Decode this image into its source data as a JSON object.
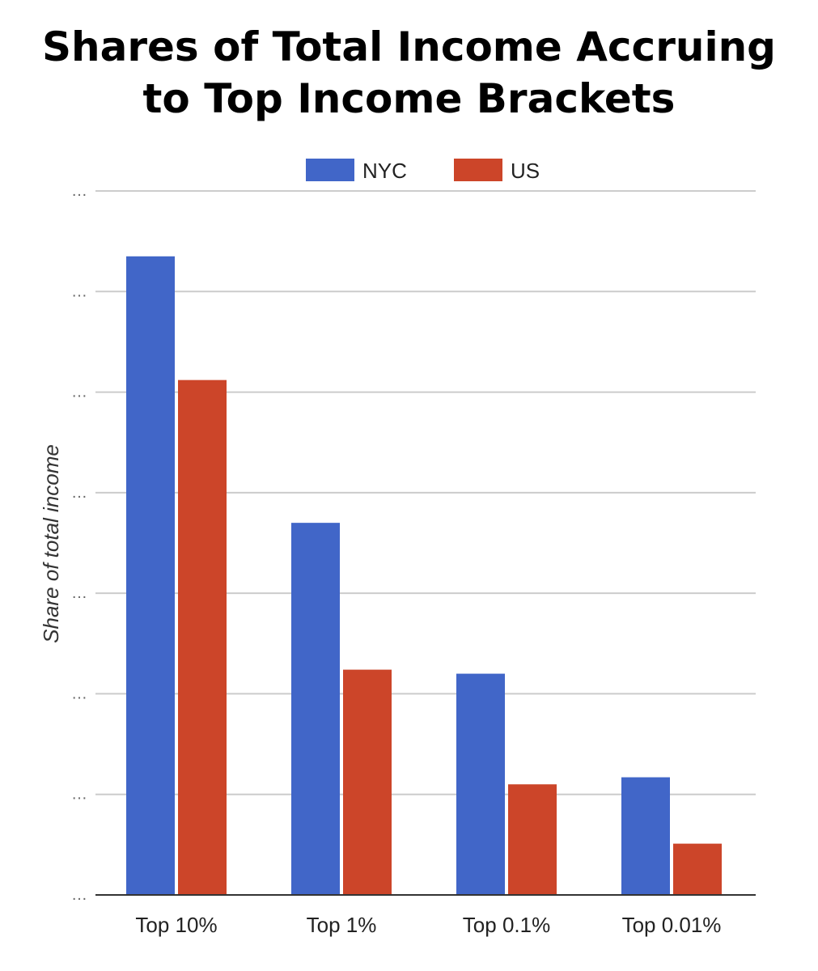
{
  "chart_data": {
    "type": "bar",
    "title_lines": [
      "Shares of Total Income Accruing",
      "to Top Income Brackets"
    ],
    "ylabel": "Share of total income",
    "xlabel": "",
    "categories": [
      "Top 10%",
      "Top 1%",
      "Top 0.1%",
      "Top 0.01%"
    ],
    "series": [
      {
        "name": "NYC",
        "color": "#4166c8",
        "values": [
          6.35,
          3.7,
          2.2,
          1.17
        ]
      },
      {
        "name": "US",
        "color": "#cc4529",
        "values": [
          5.12,
          2.24,
          1.1,
          0.51
        ]
      }
    ],
    "y_tick_labels": [
      "…",
      "…",
      "…",
      "…",
      "…",
      "…",
      "…",
      "…"
    ],
    "ylim": [
      0,
      7
    ],
    "grid": true,
    "legend_position": "top-center"
  }
}
